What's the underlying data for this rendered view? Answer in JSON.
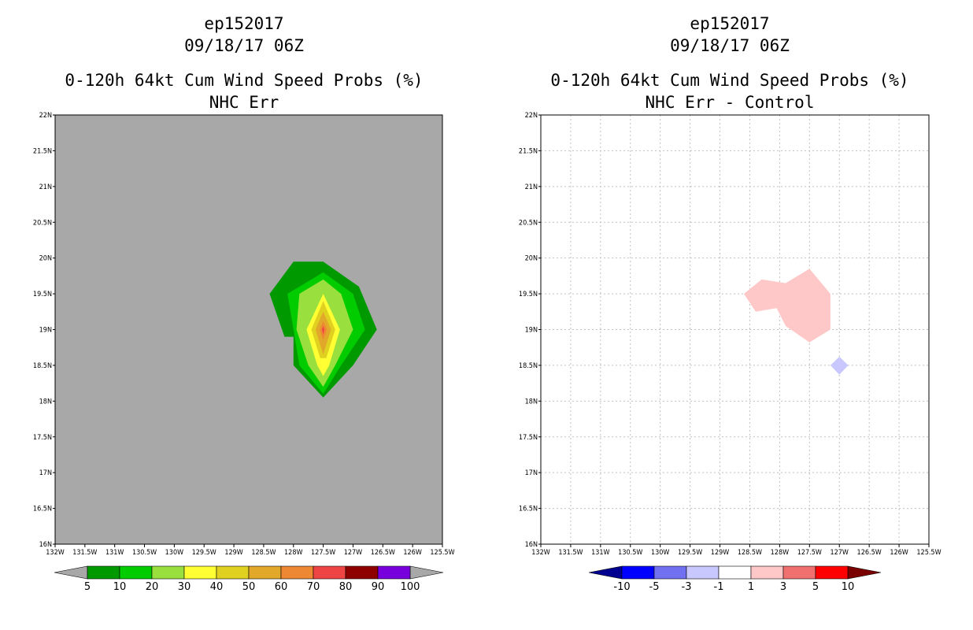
{
  "colors": {
    "land": "#a8a8a8",
    "grid": "#c0c0c0",
    "frame": "#000000",
    "background": "#ffffff"
  },
  "chart_data": [
    {
      "type": "heatmap",
      "panel": "left",
      "title_lines": [
        "ep152017",
        "09/18/17 06Z",
        "0-120h 64kt Cum Wind Speed Probs (%)",
        "NHC Err"
      ],
      "xlim": [
        -132,
        -125.5
      ],
      "ylim": [
        16,
        22
      ],
      "x_tick_labels": [
        "132W",
        "131.5W",
        "131W",
        "130.5W",
        "130W",
        "129.5W",
        "129W",
        "128.5W",
        "128W",
        "127.5W",
        "127W",
        "126.5W",
        "126W",
        "125.5W"
      ],
      "y_tick_labels": [
        "16N",
        "16.5N",
        "17N",
        "17.5N",
        "18N",
        "18.5N",
        "19N",
        "19.5N",
        "20N",
        "20.5N",
        "21N",
        "21.5N",
        "22N"
      ],
      "colorbar": {
        "labels": [
          "5",
          "10",
          "20",
          "30",
          "40",
          "50",
          "60",
          "70",
          "80",
          "90",
          "100"
        ],
        "colors": [
          "#009900",
          "#00cc00",
          "#99e03f",
          "#ffff33",
          "#e0d020",
          "#e2a82a",
          "#ee8833",
          "#ef4444",
          "#8e0000",
          "#7700dd"
        ],
        "end_color": "#a8a8a8"
      },
      "contours": [
        {
          "level": "5-10",
          "color": "#009900",
          "points": [
            [
              -128.4,
              19.5
            ],
            [
              -128.0,
              19.95
            ],
            [
              -127.5,
              19.95
            ],
            [
              -126.9,
              19.6
            ],
            [
              -126.6,
              19.0
            ],
            [
              -127.0,
              18.5
            ],
            [
              -127.5,
              18.05
            ],
            [
              -128.0,
              18.5
            ],
            [
              -128.0,
              18.9
            ],
            [
              -128.15,
              18.9
            ]
          ]
        },
        {
          "level": "10-20",
          "color": "#00cc00",
          "points": [
            [
              -128.1,
              19.5
            ],
            [
              -127.5,
              19.8
            ],
            [
              -127.0,
              19.5
            ],
            [
              -126.8,
              19.0
            ],
            [
              -127.2,
              18.5
            ],
            [
              -127.5,
              18.1
            ],
            [
              -127.9,
              18.5
            ],
            [
              -128.0,
              19.0
            ]
          ]
        },
        {
          "level": "20-30",
          "color": "#99e03f",
          "points": [
            [
              -127.9,
              19.5
            ],
            [
              -127.5,
              19.7
            ],
            [
              -127.2,
              19.5
            ],
            [
              -127.0,
              19.0
            ],
            [
              -127.3,
              18.5
            ],
            [
              -127.5,
              18.2
            ],
            [
              -127.75,
              18.5
            ],
            [
              -127.95,
              19.0
            ]
          ]
        },
        {
          "level": "30-40",
          "color": "#ffff33",
          "points": [
            [
              -127.5,
              19.5
            ],
            [
              -127.22,
              19.0
            ],
            [
              -127.4,
              18.5
            ],
            [
              -127.5,
              18.35
            ],
            [
              -127.6,
              18.5
            ],
            [
              -127.78,
              19.0
            ]
          ]
        },
        {
          "level": "40-50",
          "color": "#e0d020",
          "points": [
            [
              -127.5,
              19.4
            ],
            [
              -127.3,
              19.0
            ],
            [
              -127.45,
              18.6
            ],
            [
              -127.55,
              18.6
            ],
            [
              -127.7,
              19.0
            ]
          ]
        },
        {
          "level": "50-60",
          "color": "#e2a82a",
          "points": [
            [
              -127.5,
              19.25
            ],
            [
              -127.37,
              19.0
            ],
            [
              -127.5,
              18.65
            ],
            [
              -127.63,
              19.0
            ]
          ]
        },
        {
          "level": "60-70",
          "color": "#ee8833",
          "points": [
            [
              -127.5,
              19.12
            ],
            [
              -127.44,
              19.0
            ],
            [
              -127.5,
              18.85
            ],
            [
              -127.56,
              19.0
            ]
          ]
        },
        {
          "level": "70-80",
          "color": "#ef4444",
          "points": [
            [
              -127.5,
              19.05
            ],
            [
              -127.48,
              19.0
            ],
            [
              -127.5,
              18.93
            ],
            [
              -127.52,
              19.0
            ]
          ]
        }
      ]
    },
    {
      "type": "heatmap",
      "panel": "right",
      "title_lines": [
        "ep152017",
        "09/18/17 06Z",
        "0-120h 64kt Cum Wind Speed Probs (%)",
        "NHC Err - Control"
      ],
      "xlim": [
        -132,
        -125.5
      ],
      "ylim": [
        16,
        22
      ],
      "x_tick_labels": [
        "132W",
        "131.5W",
        "131W",
        "130.5W",
        "130W",
        "129.5W",
        "129W",
        "128.5W",
        "128W",
        "127.5W",
        "127W",
        "126.5W",
        "126W",
        "125.5W"
      ],
      "y_tick_labels": [
        "16N",
        "16.5N",
        "17N",
        "17.5N",
        "18N",
        "18.5N",
        "19N",
        "19.5N",
        "20N",
        "20.5N",
        "21N",
        "21.5N",
        "22N"
      ],
      "colorbar": {
        "labels": [
          "-10",
          "-5",
          "-3",
          "-1",
          "1",
          "3",
          "5",
          "10"
        ],
        "colors": [
          "#0000ff",
          "#7070f0",
          "#c8c8ff",
          "#ffffff",
          "#ffc8c8",
          "#f07070",
          "#ff0000"
        ],
        "low_end_color": "#000090",
        "high_end_color": "#7a0000"
      },
      "contours": [
        {
          "level": "1-3",
          "color": "#ffc8c8",
          "points": [
            [
              -128.6,
              19.5
            ],
            [
              -128.3,
              19.7
            ],
            [
              -127.9,
              19.65
            ],
            [
              -127.5,
              19.85
            ],
            [
              -127.15,
              19.5
            ],
            [
              -127.15,
              19.0
            ],
            [
              -127.5,
              18.82
            ],
            [
              -127.9,
              19.05
            ],
            [
              -128.05,
              19.3
            ],
            [
              -128.4,
              19.25
            ]
          ]
        },
        {
          "level": "-3--1",
          "color": "#c8c8ff",
          "points": [
            [
              -127.0,
              18.62
            ],
            [
              -126.85,
              18.5
            ],
            [
              -127.0,
              18.37
            ],
            [
              -127.15,
              18.5
            ]
          ]
        }
      ]
    }
  ]
}
